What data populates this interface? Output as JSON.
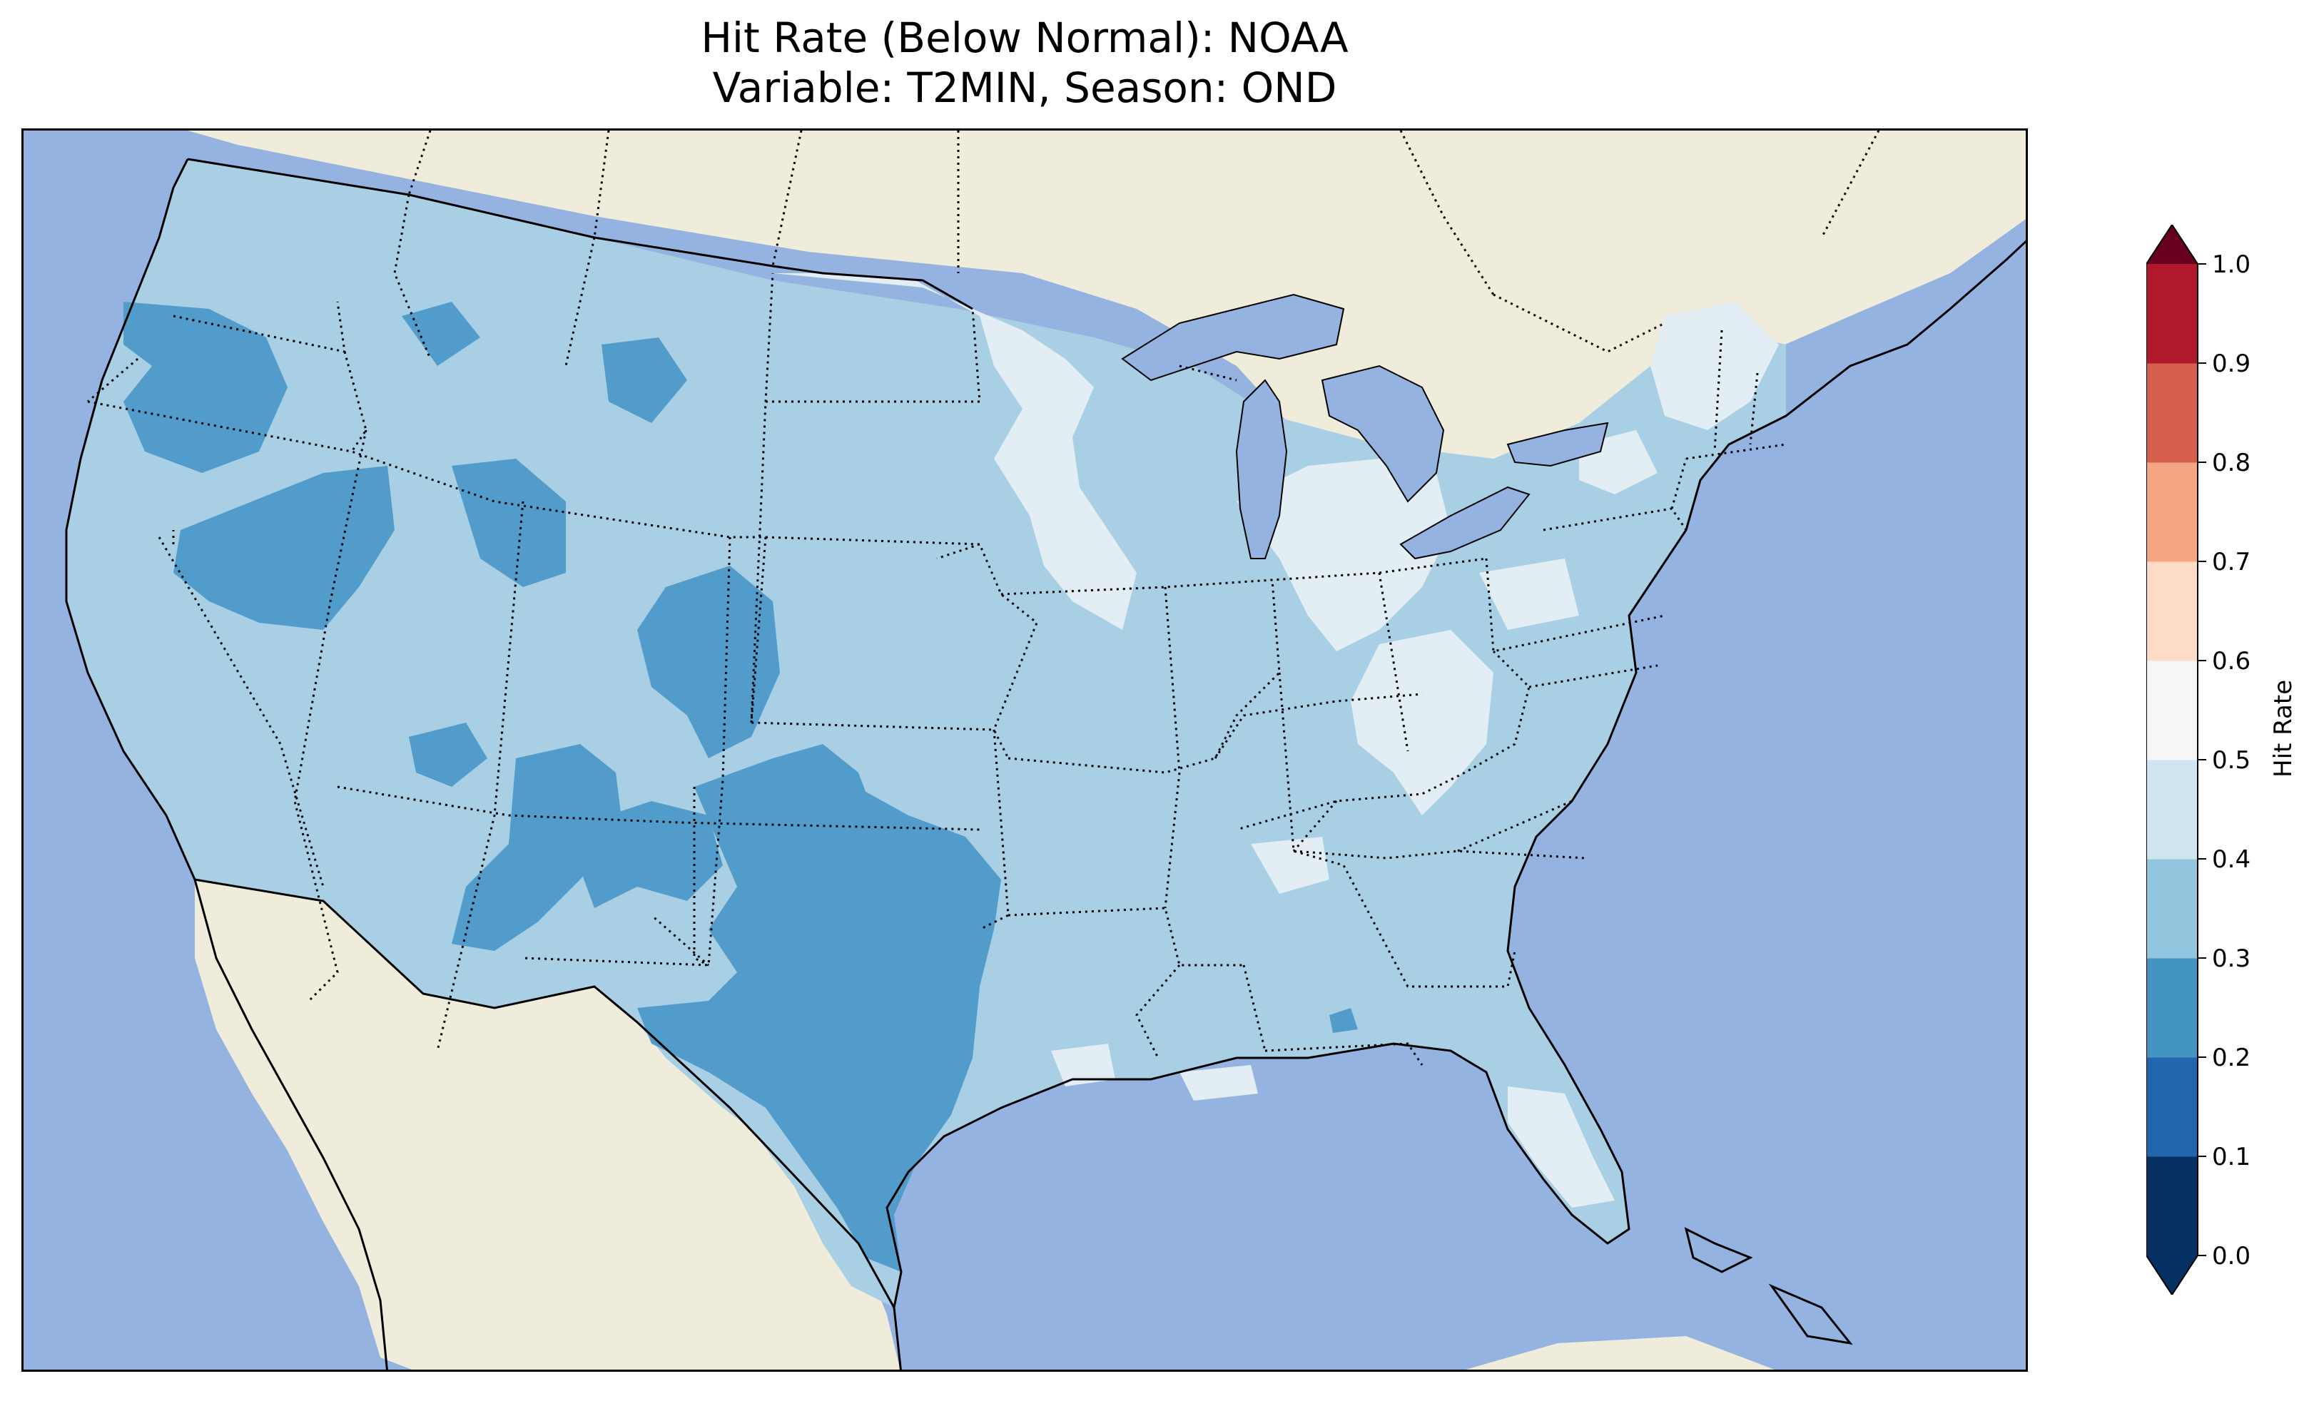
{
  "title_line1": "Hit Rate (Below Normal): NOAA",
  "title_line2": "Variable: T2MIN, Season: OND",
  "colorbar": {
    "label": "Hit Rate",
    "ticks": [
      "0.0",
      "0.1",
      "0.2",
      "0.3",
      "0.4",
      "0.5",
      "0.6",
      "0.7",
      "0.8",
      "0.9",
      "1.0"
    ],
    "colors": [
      "#053061",
      "#2166ac",
      "#4393c3",
      "#92c5de",
      "#d1e5f0",
      "#f7f7f7",
      "#fddbc7",
      "#f4a582",
      "#d6604d",
      "#b2182b",
      "#67001f"
    ],
    "extend": "both"
  },
  "map": {
    "ocean_color": "#95b3e0",
    "land_color": "#efecdc",
    "bins": [
      {
        "range": "0.2-0.3",
        "color": "#529ccb"
      },
      {
        "range": "0.3-0.4",
        "color": "#a8cfe4"
      },
      {
        "range": "0.4-0.5",
        "color": "#e2edf4"
      }
    ]
  }
}
